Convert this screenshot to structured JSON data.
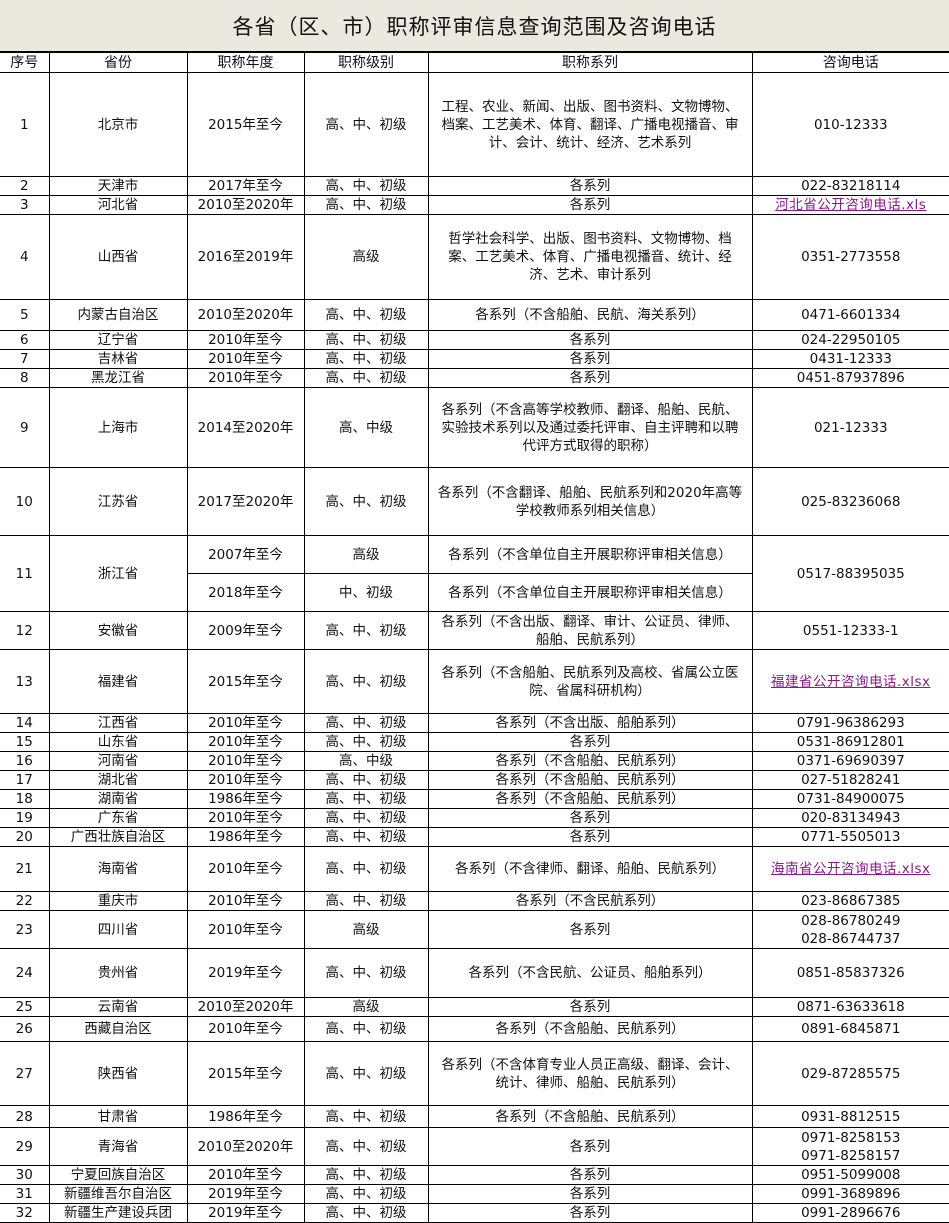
{
  "title": "各省（区、市）职称评审信息查询范围及咨询电话",
  "columns": [
    "序号",
    "省份",
    "职称年度",
    "职称级别",
    "职称系列",
    "咨询电话"
  ],
  "colors": {
    "title_bg": "#ebe9df",
    "link": "#8b1a8b",
    "border": "#000000"
  },
  "rows": [
    {
      "no": "1",
      "province": "北京市",
      "year": "2015年至今",
      "level": "高、中、初级",
      "series": "工程、农业、新闻、出版、图书资料、文物博物、档案、工艺美术、体育、翻译、广播电视播音、审计、会计、统计、经济、艺术系列",
      "phones": [
        "010-12333"
      ]
    },
    {
      "no": "2",
      "province": "天津市",
      "year": "2017年至今",
      "level": "高、中、初级",
      "series": "各系列",
      "phones": [
        "022-83218114"
      ]
    },
    {
      "no": "3",
      "province": "河北省",
      "year": "2010至2020年",
      "level": "高、中、初级",
      "series": "各系列",
      "link": "河北省公开咨询电话.xls"
    },
    {
      "no": "4",
      "province": "山西省",
      "year": "2016至2019年",
      "level": "高级",
      "series": "哲学社会科学、出版、图书资料、文物博物、档案、工艺美术、体育、广播电视播音、统计、经济、艺术、审计系列",
      "phones": [
        "0351-2773558"
      ]
    },
    {
      "no": "5",
      "province": "内蒙古自治区",
      "year": "2010至2020年",
      "level": "高、中、初级",
      "series": "各系列（不含船舶、民航、海关系列）",
      "phones": [
        "0471-6601334"
      ]
    },
    {
      "no": "6",
      "province": "辽宁省",
      "year": "2010年至今",
      "level": "高、中、初级",
      "series": "各系列",
      "phones": [
        "024-22950105"
      ]
    },
    {
      "no": "7",
      "province": "吉林省",
      "year": "2010年至今",
      "level": "高、中、初级",
      "series": "各系列",
      "phones": [
        "0431-12333"
      ]
    },
    {
      "no": "8",
      "province": "黑龙江省",
      "year": "2010年至今",
      "level": "高、中、初级",
      "series": "各系列",
      "phones": [
        "0451-87937896"
      ]
    },
    {
      "no": "9",
      "province": "上海市",
      "year": "2014至2020年",
      "level": "高、中级",
      "series": "各系列（不含高等学校教师、翻译、船舶、民航、实验技术系列以及通过委托评审、自主评聘和以聘代评方式取得的职称）",
      "phones": [
        "021-12333"
      ]
    },
    {
      "no": "10",
      "province": "江苏省",
      "year": "2017至2020年",
      "level": "高、中、初级",
      "series": "各系列（不含翻译、船舶、民航系列和2020年高等学校教师系列相关信息）",
      "phones": [
        "025-83236068"
      ]
    },
    {
      "no": "11",
      "province": "浙江省",
      "phones": [
        "0517-88395035"
      ],
      "sub": [
        {
          "year": "2007年至今",
          "level": "高级",
          "series": "各系列（不含单位自主开展职称评审相关信息）"
        },
        {
          "year": "2018年至今",
          "level": "中、初级",
          "series": "各系列（不含单位自主开展职称评审相关信息）"
        }
      ]
    },
    {
      "no": "12",
      "province": "安徽省",
      "year": "2009年至今",
      "level": "高、中、初级",
      "series": "各系列（不含出版、翻译、审计、公证员、律师、船舶、民航系列）",
      "phones": [
        "0551-12333-1"
      ]
    },
    {
      "no": "13",
      "province": "福建省",
      "year": "2015年至今",
      "level": "高、中、初级",
      "series": "各系列（不含船舶、民航系列及高校、省属公立医院、省属科研机构）",
      "link": "福建省公开咨询电话.xlsx"
    },
    {
      "no": "14",
      "province": "江西省",
      "year": "2010年至今",
      "level": "高、中、初级",
      "series": "各系列（不含出版、船舶系列）",
      "phones": [
        "0791-96386293"
      ]
    },
    {
      "no": "15",
      "province": "山东省",
      "year": "2010年至今",
      "level": "高、中、初级",
      "series": "各系列",
      "phones": [
        "0531-86912801"
      ]
    },
    {
      "no": "16",
      "province": "河南省",
      "year": "2010年至今",
      "level": "高、中级",
      "series": "各系列（不含船舶、民航系列）",
      "phones": [
        "0371-69690397"
      ]
    },
    {
      "no": "17",
      "province": "湖北省",
      "year": "2010年至今",
      "level": "高、中、初级",
      "series": "各系列（不含船舶、民航系列）",
      "phones": [
        "027-51828241"
      ]
    },
    {
      "no": "18",
      "province": "湖南省",
      "year": "1986年至今",
      "level": "高、中、初级",
      "series": "各系列（不含船舶、民航系列）",
      "phones": [
        "0731-84900075"
      ]
    },
    {
      "no": "19",
      "province": "广东省",
      "year": "2010年至今",
      "level": "高、中、初级",
      "series": "各系列",
      "phones": [
        "020-83134943"
      ]
    },
    {
      "no": "20",
      "province": "广西壮族自治区",
      "year": "1986年至今",
      "level": "高、中、初级",
      "series": "各系列",
      "phones": [
        "0771-5505013"
      ]
    },
    {
      "no": "21",
      "province": "海南省",
      "year": "2010年至今",
      "level": "高、中、初级",
      "series": "各系列（不含律师、翻译、船舶、民航系列）",
      "link": "海南省公开咨询电话.xlsx"
    },
    {
      "no": "22",
      "province": "重庆市",
      "year": "2010年至今",
      "level": "高、中、初级",
      "series": "各系列（不含民航系列）",
      "phones": [
        "023-86867385"
      ]
    },
    {
      "no": "23",
      "province": "四川省",
      "year": "2010年至今",
      "level": "高级",
      "series": "各系列",
      "phones": [
        "028-86780249",
        "028-86744737"
      ]
    },
    {
      "no": "24",
      "province": "贵州省",
      "year": "2019年至今",
      "level": "高、中、初级",
      "series": "各系列（不含民航、公证员、船舶系列）",
      "phones": [
        "0851-85837326"
      ]
    },
    {
      "no": "25",
      "province": "云南省",
      "year": "2010至2020年",
      "level": "高级",
      "series": "各系列",
      "phones": [
        "0871-63633618"
      ]
    },
    {
      "no": "26",
      "province": "西藏自治区",
      "year": "2010年至今",
      "level": "高、中、初级",
      "series": "各系列（不含船舶、民航系列）",
      "phones": [
        "0891-6845871"
      ]
    },
    {
      "no": "27",
      "province": "陕西省",
      "year": "2015年至今",
      "level": "高、中、初级",
      "series": "各系列（不含体育专业人员正高级、翻译、会计、统计、律师、船舶、民航系列）",
      "phones": [
        "029-87285575"
      ]
    },
    {
      "no": "28",
      "province": "甘肃省",
      "year": "1986年至今",
      "level": "高、中、初级",
      "series": "各系列（不含船舶、民航系列）",
      "phones": [
        "0931-8812515"
      ]
    },
    {
      "no": "29",
      "province": "青海省",
      "year": "2010至2020年",
      "level": "高、中、初级",
      "series": "各系列",
      "phones": [
        "0971-8258153",
        "0971-8258157"
      ]
    },
    {
      "no": "30",
      "province": "宁夏回族自治区",
      "year": "2010年至今",
      "level": "高、中、初级",
      "series": "各系列",
      "phones": [
        "0951-5099008"
      ]
    },
    {
      "no": "31",
      "province": "新疆维吾尔自治区",
      "year": "2019年至今",
      "level": "高、中、初级",
      "series": "各系列",
      "phones": [
        "0991-3689896"
      ]
    },
    {
      "no": "32",
      "province": "新疆生产建设兵团",
      "year": "2019年至今",
      "level": "高、中、初级",
      "series": "各系列",
      "phones": [
        "0991-2896676"
      ]
    }
  ]
}
